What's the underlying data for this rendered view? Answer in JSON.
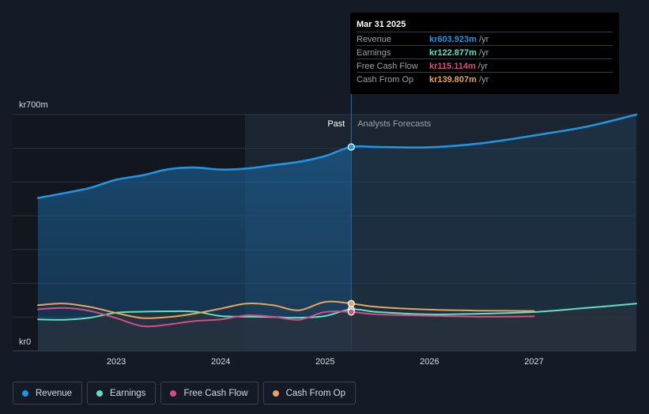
{
  "chart_data": {
    "type": "line",
    "y_top_label": "kr700m",
    "y_bottom_label": "kr0",
    "ylim": [
      0,
      700
    ],
    "xlim": [
      2022.25,
      2027.98
    ],
    "x_ticks": [
      "2023",
      "2024",
      "2025",
      "2026",
      "2027"
    ],
    "x_tick_values": [
      2023,
      2024,
      2025,
      2026,
      2027
    ],
    "past_label": "Past",
    "forecast_label": "Analysts Forecasts",
    "past_end": 2025.25,
    "series": [
      {
        "name": "Revenue",
        "color": "#2394df",
        "x": [
          2022.25,
          2022.5,
          2022.75,
          2023.0,
          2023.25,
          2023.5,
          2023.75,
          2024.0,
          2024.25,
          2024.5,
          2024.75,
          2025.0,
          2025.25,
          2025.5,
          2026.0,
          2026.5,
          2027.0,
          2027.5,
          2027.98
        ],
        "y": [
          453,
          467,
          483,
          507,
          520,
          538,
          543,
          537,
          540,
          550,
          560,
          577,
          604,
          604,
          603,
          615,
          638,
          664,
          700
        ]
      },
      {
        "name": "Earnings",
        "color": "#5ee0c5",
        "x": [
          2022.25,
          2022.5,
          2022.75,
          2023.0,
          2023.25,
          2023.5,
          2023.75,
          2024.0,
          2024.25,
          2024.5,
          2024.75,
          2025.0,
          2025.25,
          2025.5,
          2026.0,
          2026.5,
          2027.0,
          2027.5,
          2027.98
        ],
        "y": [
          93,
          92,
          98,
          113,
          116,
          117,
          116,
          103,
          101,
          100,
          98,
          103,
          123,
          115,
          108,
          110,
          115,
          127,
          140
        ]
      },
      {
        "name": "Free Cash Flow",
        "color": "#d44e84",
        "x": [
          2022.25,
          2022.5,
          2022.75,
          2023.0,
          2023.25,
          2023.5,
          2023.75,
          2024.0,
          2024.25,
          2024.5,
          2024.75,
          2025.0,
          2025.25,
          2025.5,
          2026.0,
          2026.5,
          2027.0
        ],
        "y": [
          123,
          127,
          118,
          97,
          73,
          78,
          88,
          93,
          105,
          101,
          92,
          115,
          115,
          108,
          104,
          101,
          102
        ]
      },
      {
        "name": "Cash From Op",
        "color": "#e6a55c",
        "x": [
          2022.25,
          2022.5,
          2022.75,
          2023.0,
          2023.25,
          2023.5,
          2023.75,
          2024.0,
          2024.25,
          2024.5,
          2024.75,
          2025.0,
          2025.25,
          2025.5,
          2026.0,
          2026.5,
          2027.0
        ],
        "y": [
          135,
          140,
          130,
          112,
          97,
          100,
          110,
          125,
          140,
          135,
          120,
          145,
          140,
          130,
          122,
          119,
          118
        ]
      }
    ]
  },
  "tooltip": {
    "date": "Mar 31 2025",
    "rows": [
      {
        "label": "Revenue",
        "value": "kr603.923m",
        "unit": "/yr",
        "color": "#2394df"
      },
      {
        "label": "Earnings",
        "value": "kr122.877m",
        "unit": "/yr",
        "color": "#5ee0c5"
      },
      {
        "label": "Free Cash Flow",
        "value": "kr115.114m",
        "unit": "/yr",
        "color": "#d44e84"
      },
      {
        "label": "Cash From Op",
        "value": "kr139.807m",
        "unit": "/yr",
        "color": "#e6a55c"
      }
    ]
  },
  "legend": [
    {
      "label": "Revenue",
      "color": "#2394df"
    },
    {
      "label": "Earnings",
      "color": "#5ee0c5"
    },
    {
      "label": "Free Cash Flow",
      "color": "#d44e84"
    },
    {
      "label": "Cash From Op",
      "color": "#e6a55c"
    }
  ]
}
